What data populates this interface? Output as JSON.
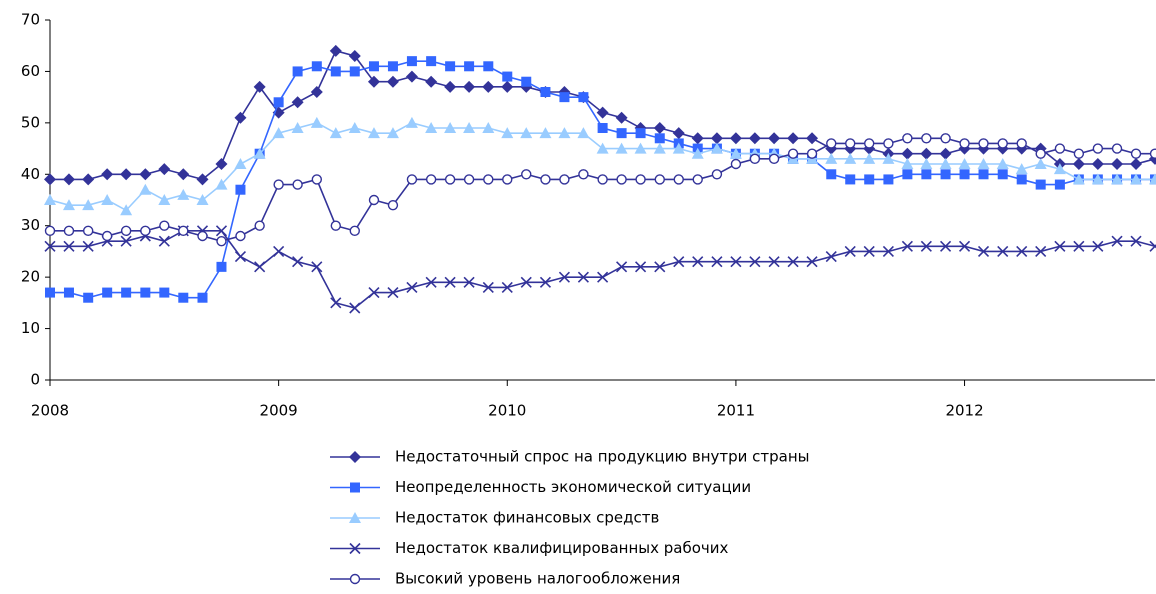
{
  "chart_data": {
    "type": "line",
    "x": [
      2008,
      2008.083,
      2008.167,
      2008.25,
      2008.333,
      2008.417,
      2008.5,
      2008.583,
      2008.667,
      2008.75,
      2008.833,
      2008.917,
      2009,
      2009.083,
      2009.167,
      2009.25,
      2009.333,
      2009.417,
      2009.5,
      2009.583,
      2009.667,
      2009.75,
      2009.833,
      2009.917,
      2010,
      2010.083,
      2010.167,
      2010.25,
      2010.333,
      2010.417,
      2010.5,
      2010.583,
      2010.667,
      2010.75,
      2010.833,
      2010.917,
      2011,
      2011.083,
      2011.167,
      2011.25,
      2011.333,
      2011.417,
      2011.5,
      2011.583,
      2011.667,
      2011.75,
      2011.833,
      2011.917,
      2012,
      2012.083,
      2012.167,
      2012.25,
      2012.333,
      2012.417,
      2012.5,
      2012.583,
      2012.667,
      2012.75,
      2012.833
    ],
    "series": [
      {
        "name": "Недостаточный спрос на продукцию внутри страны",
        "color": "#333399",
        "marker": "diamond",
        "values": [
          39,
          39,
          39,
          40,
          40,
          40,
          41,
          40,
          39,
          42,
          51,
          57,
          52,
          54,
          56,
          64,
          63,
          58,
          58,
          59,
          58,
          57,
          57,
          57,
          57,
          57,
          56,
          56,
          55,
          52,
          51,
          49,
          49,
          48,
          47,
          47,
          47,
          47,
          47,
          47,
          47,
          45,
          45,
          45,
          44,
          44,
          44,
          44,
          45,
          45,
          45,
          45,
          45,
          42,
          42,
          42,
          42,
          42,
          43
        ]
      },
      {
        "name": "Неопределенность экономической ситуации",
        "color": "#3366ff",
        "marker": "square",
        "values": [
          17,
          17,
          16,
          17,
          17,
          17,
          17,
          16,
          16,
          22,
          37,
          44,
          54,
          60,
          61,
          60,
          60,
          61,
          61,
          62,
          62,
          61,
          61,
          61,
          59,
          58,
          56,
          55,
          55,
          49,
          48,
          48,
          47,
          46,
          45,
          45,
          44,
          44,
          44,
          43,
          43,
          40,
          39,
          39,
          39,
          40,
          40,
          40,
          40,
          40,
          40,
          39,
          38,
          38,
          39,
          39,
          39,
          39,
          39
        ]
      },
      {
        "name": "Недостаток финансовых средств",
        "color": "#99ccff",
        "marker": "triangle",
        "values": [
          35,
          34,
          34,
          35,
          33,
          37,
          35,
          36,
          35,
          38,
          42,
          44,
          48,
          49,
          50,
          48,
          49,
          48,
          48,
          50,
          49,
          49,
          49,
          49,
          48,
          48,
          48,
          48,
          48,
          45,
          45,
          45,
          45,
          45,
          44,
          45,
          44,
          44,
          44,
          43,
          43,
          43,
          43,
          43,
          43,
          42,
          42,
          42,
          42,
          42,
          42,
          41,
          42,
          41,
          39,
          39,
          39,
          39,
          39
        ]
      },
      {
        "name": "Недостаток квалифицированных рабочих",
        "color": "#333399",
        "marker": "cross",
        "values": [
          26,
          26,
          26,
          27,
          27,
          28,
          27,
          29,
          29,
          29,
          24,
          22,
          25,
          23,
          22,
          15,
          14,
          17,
          17,
          18,
          19,
          19,
          19,
          18,
          18,
          19,
          19,
          20,
          20,
          20,
          22,
          22,
          22,
          23,
          23,
          23,
          23,
          23,
          23,
          23,
          23,
          24,
          25,
          25,
          25,
          26,
          26,
          26,
          26,
          25,
          25,
          25,
          25,
          26,
          26,
          26,
          27,
          27,
          26
        ]
      },
      {
        "name": "Высокий уровень налогообложения",
        "color": "#333399",
        "marker": "circle",
        "values": [
          29,
          29,
          29,
          28,
          29,
          29,
          30,
          29,
          28,
          27,
          28,
          30,
          38,
          38,
          39,
          30,
          29,
          35,
          34,
          39,
          39,
          39,
          39,
          39,
          39,
          40,
          39,
          39,
          40,
          39,
          39,
          39,
          39,
          39,
          39,
          40,
          42,
          43,
          43,
          44,
          44,
          46,
          46,
          46,
          46,
          47,
          47,
          47,
          46,
          46,
          46,
          46,
          44,
          45,
          44,
          45,
          45,
          44,
          44
        ]
      }
    ],
    "xlim": [
      2008,
      2012.833
    ],
    "xticks": [
      2008,
      2009,
      2010,
      2011,
      2012
    ],
    "ylim": [
      0,
      70
    ],
    "yticks": [
      0,
      10,
      20,
      30,
      40,
      50,
      60,
      70
    ]
  }
}
